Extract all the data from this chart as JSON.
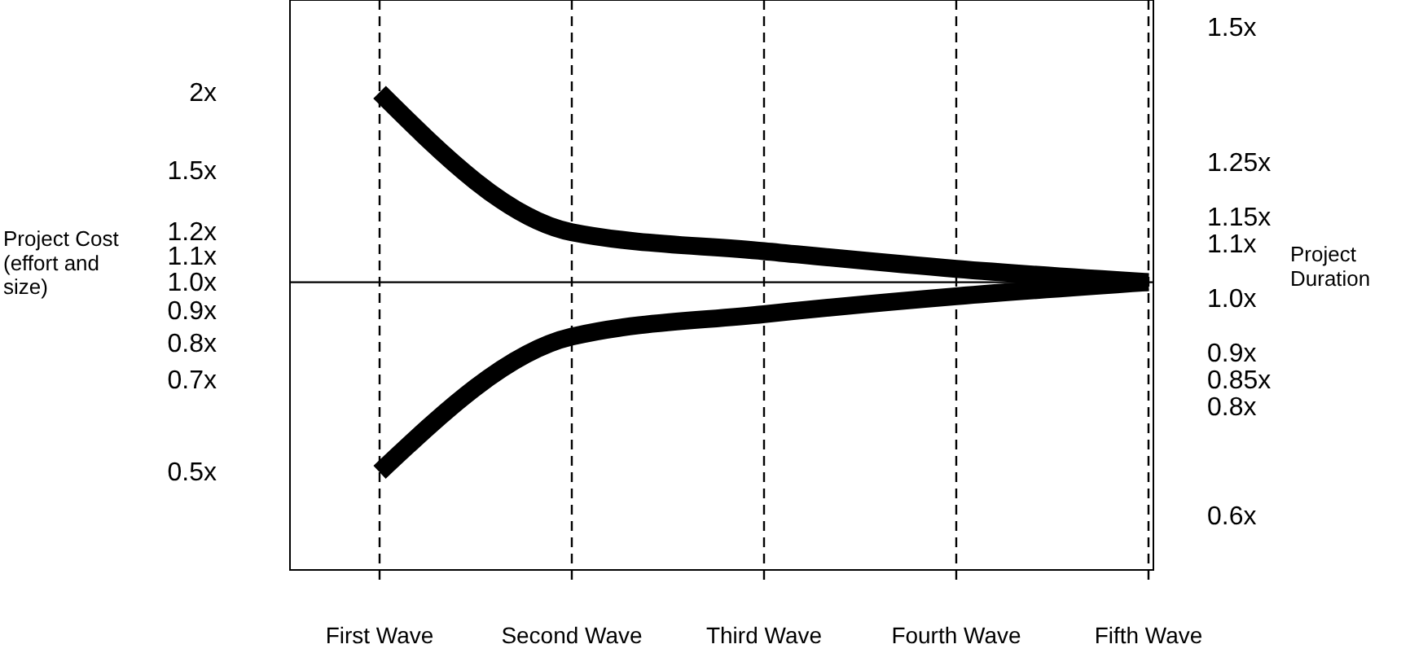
{
  "chart_data": {
    "type": "line",
    "categories": [
      "First Wave",
      "Second Wave",
      "Third Wave",
      "Fourth Wave",
      "Fifth Wave"
    ],
    "series": [
      {
        "color": "#000000",
        "values": [
          2.0,
          1.2,
          1.12,
          1.05,
          1.0
        ]
      },
      {
        "color": "#000000",
        "values": [
          0.5,
          0.82,
          0.89,
          0.95,
          1.0
        ]
      }
    ],
    "log": "y",
    "ylim": [
      0.35,
      2.8
    ],
    "yticks": [
      {
        "value": 2,
        "label": "2x"
      },
      {
        "value": 1.5,
        "label": "1.5x"
      },
      {
        "value": 1.2,
        "label": "1.2x"
      },
      {
        "value": 1.1,
        "label": "1.1x"
      },
      {
        "value": 1.0,
        "label": "1.0x"
      },
      {
        "value": 0.9,
        "label": "0.9x"
      },
      {
        "value": 0.8,
        "label": "0.8x"
      },
      {
        "value": 0.7,
        "label": "0.7x"
      },
      {
        "value": 0.5,
        "label": "0.5x"
      }
    ],
    "y2lim": [
      0.5,
      1.55
    ],
    "y2ticks": [
      {
        "value": 1.5,
        "label": "1.5x"
      },
      {
        "value": 1.25,
        "label": "1.25x"
      },
      {
        "value": 1.15,
        "label": "1.15x"
      },
      {
        "value": 1.1,
        "label": "1.1x"
      },
      {
        "value": 1.0,
        "label": "1.0x"
      },
      {
        "value": 0.9,
        "label": "0.9x"
      },
      {
        "value": 0.85,
        "label": "0.85x"
      },
      {
        "value": 0.8,
        "label": "0.8x"
      },
      {
        "value": 0.6,
        "label": "0.6x"
      }
    ],
    "ylabel": "Project Cost (effort and size)",
    "y2label": "Project Duration",
    "ref_lines": [
      {
        "axis": "y",
        "value": 1.0,
        "color": "#000000",
        "line_style": "solid"
      }
    ],
    "grid": "x",
    "line_style": "solid",
    "marker": "none"
  }
}
